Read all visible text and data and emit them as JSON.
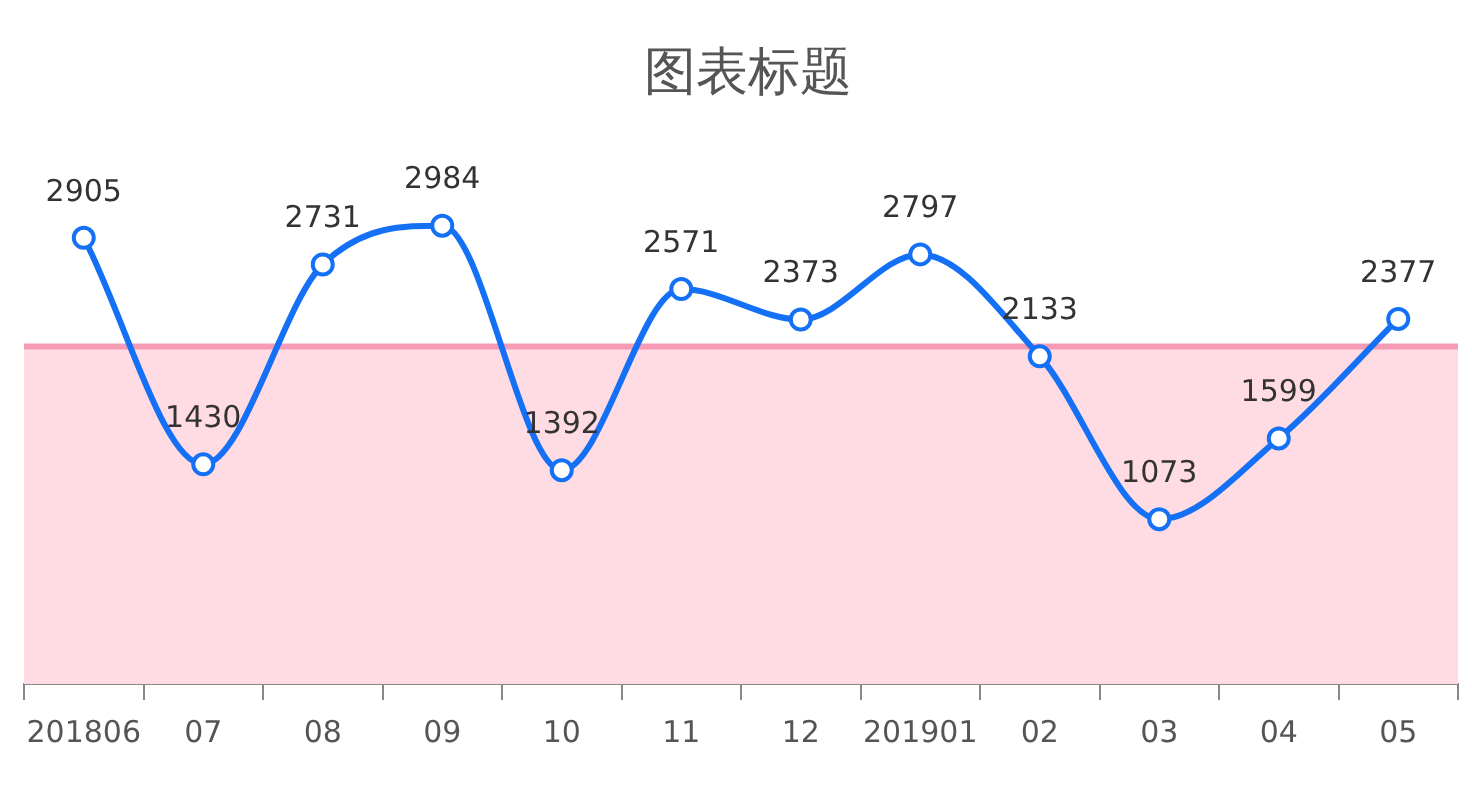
{
  "chart_data": {
    "type": "line",
    "title": "图表标题",
    "categories": [
      "201806",
      "07",
      "08",
      "09",
      "10",
      "11",
      "12",
      "201901",
      "02",
      "03",
      "04",
      "05"
    ],
    "series": [
      {
        "color": "#1470f5",
        "values": [
          2905,
          1430,
          2731,
          2984,
          1392,
          2571,
          2373,
          2797,
          2133,
          1073,
          1599,
          2377
        ]
      }
    ],
    "data_labels": true,
    "marker": "circle",
    "line_style": "solid",
    "grid": false,
    "legend": false,
    "ref_lines": [
      {
        "axis": "y",
        "value": 2197,
        "color": "#f59bb5"
      }
    ],
    "bands": [
      {
        "axis": "y",
        "from": 0,
        "to": 2197,
        "color": "#ffdbe3"
      }
    ]
  }
}
